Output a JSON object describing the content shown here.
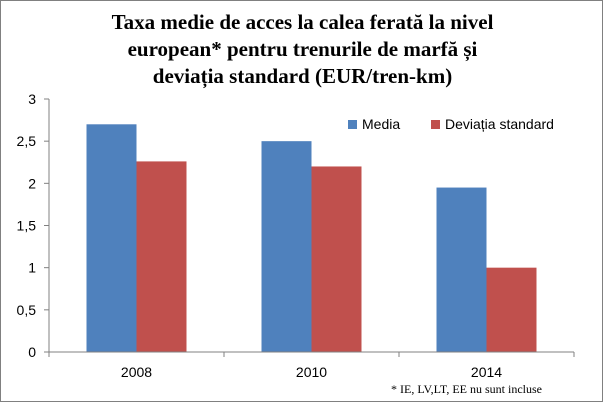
{
  "chart_data": {
    "type": "bar",
    "title_lines": [
      "Taxa medie de acces la calea ferată la nivel",
      "european* pentru trenurile de marfă și",
      "deviația standard (EUR/tren-km)"
    ],
    "categories": [
      "2008",
      "2010",
      "2014"
    ],
    "series": [
      {
        "name": "Media",
        "values": [
          2.7,
          2.5,
          1.95
        ],
        "color": "#4f81bd"
      },
      {
        "name": "Deviația standard",
        "values": [
          2.26,
          2.2,
          1.0
        ],
        "color": "#c0504d"
      }
    ],
    "ylim": [
      0,
      3
    ],
    "yticks": [
      "0",
      "0,5",
      "1",
      "1,5",
      "2",
      "2,5",
      "3"
    ],
    "grid": false,
    "legend_position": "top-right",
    "footnote": "* IE, LV,LT, EE nu sunt incluse"
  }
}
